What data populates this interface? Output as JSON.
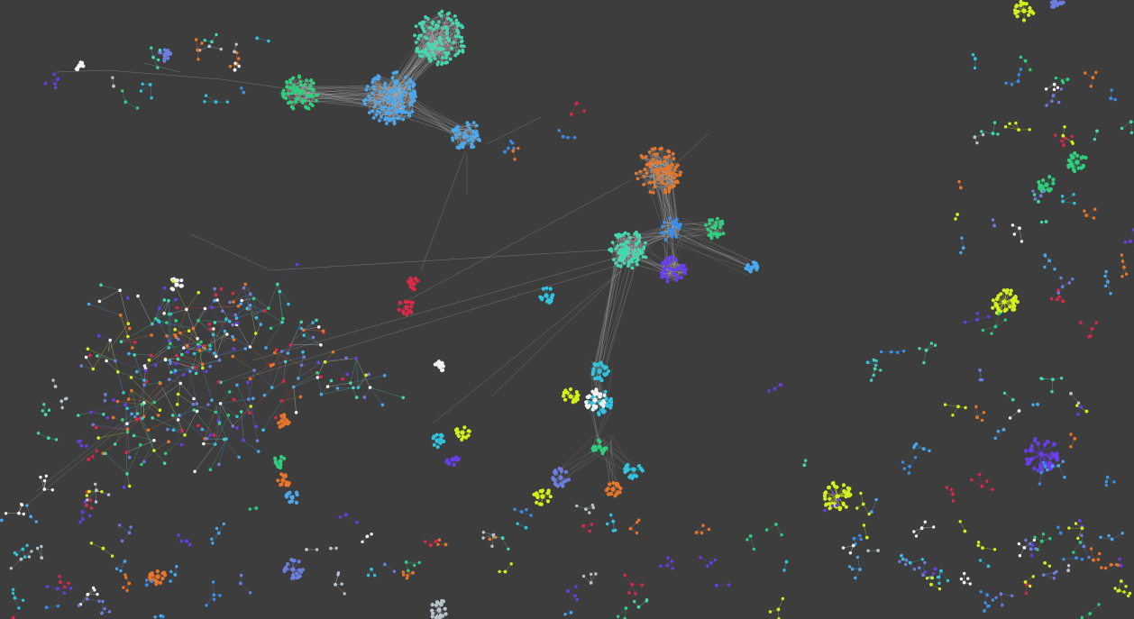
{
  "view": {
    "background": "#3d3d3d",
    "edge_color": "#c8c8c8",
    "title": ""
  },
  "palette": {
    "teal": "#44d8b0",
    "blue": "#3b8fe8",
    "sky": "#4aa8ee",
    "green": "#2fd07c",
    "orange": "#e8762a",
    "purple": "#6a3ef0",
    "periwinkle": "#6c7fe0",
    "cyan": "#30c4e0",
    "yellow": "#d4f01c",
    "red": "#e02848",
    "white": "#f2f2f2",
    "gray": "#b8c4cc"
  },
  "clusters": [
    {
      "id": "c-teal-top",
      "color": "teal",
      "size": 120,
      "density": "dense"
    },
    {
      "id": "c-blue-center",
      "color": "sky",
      "size": 130,
      "density": "dense"
    },
    {
      "id": "c-green-left",
      "color": "green",
      "size": 70,
      "density": "dense"
    },
    {
      "id": "c-blue-small",
      "color": "sky",
      "size": 50,
      "density": "dense"
    },
    {
      "id": "c-orange",
      "color": "orange",
      "size": 90,
      "density": "dense"
    },
    {
      "id": "c-teal-mid",
      "color": "teal",
      "size": 90,
      "density": "dense"
    },
    {
      "id": "c-blue-mid",
      "color": "blue",
      "size": 30,
      "density": "dense"
    },
    {
      "id": "c-green-mid",
      "color": "green",
      "size": 30,
      "density": "dense"
    },
    {
      "id": "c-purple-mid",
      "color": "purple",
      "size": 45,
      "density": "dense"
    },
    {
      "id": "c-lightblue-star",
      "color": "sky",
      "size": 14,
      "density": "star"
    },
    {
      "id": "c-cyan-lower",
      "color": "cyan",
      "size": 22,
      "density": "star"
    },
    {
      "id": "c-cyan-lower2",
      "color": "cyan",
      "size": 30,
      "density": "star"
    },
    {
      "id": "c-white-lower",
      "color": "white",
      "size": 24,
      "density": "star"
    },
    {
      "id": "c-yellow-lower",
      "color": "yellow",
      "size": 18,
      "density": "star"
    },
    {
      "id": "c-green-lower",
      "color": "green",
      "size": 14,
      "density": "star"
    },
    {
      "id": "c-periwinkle-lower",
      "color": "periwinkle",
      "size": 20,
      "density": "star"
    },
    {
      "id": "c-orange-lower",
      "color": "orange",
      "size": 16,
      "density": "star"
    },
    {
      "id": "c-cyan-lower3",
      "color": "cyan",
      "size": 18,
      "density": "star"
    },
    {
      "id": "c-yellow-lower2",
      "color": "yellow",
      "size": 16,
      "density": "star"
    },
    {
      "id": "c-red-left",
      "color": "red",
      "size": 14,
      "density": "star"
    },
    {
      "id": "c-red-left2",
      "color": "red",
      "size": 12,
      "density": "star"
    },
    {
      "id": "c-cyan-left",
      "color": "cyan",
      "size": 14,
      "density": "star"
    },
    {
      "id": "c-white-left",
      "color": "white",
      "size": 10,
      "density": "star"
    },
    {
      "id": "c-cyan-lower4",
      "color": "cyan",
      "size": 12,
      "density": "star"
    },
    {
      "id": "c-yellow-lower3",
      "color": "yellow",
      "size": 12,
      "density": "star"
    },
    {
      "id": "c-purple-lower",
      "color": "purple",
      "size": 10,
      "density": "star"
    },
    {
      "id": "c-white-lower2",
      "color": "white",
      "size": 10,
      "density": "star"
    },
    {
      "id": "c-orange-left",
      "color": "orange",
      "size": 12,
      "density": "star"
    },
    {
      "id": "c-orange-left2",
      "color": "orange",
      "size": 12,
      "density": "star"
    },
    {
      "id": "c-green-left2",
      "color": "green",
      "size": 10,
      "density": "star"
    },
    {
      "id": "c-sky-left",
      "color": "sky",
      "size": 10,
      "density": "star"
    },
    {
      "id": "c-yellow-right",
      "color": "yellow",
      "size": 40,
      "density": "star"
    },
    {
      "id": "c-purple-right",
      "color": "purple",
      "size": 50,
      "density": "star"
    },
    {
      "id": "c-yellow-bottom",
      "color": "yellow",
      "size": 40,
      "density": "star"
    },
    {
      "id": "c-green-right",
      "color": "green",
      "size": 22,
      "density": "star"
    },
    {
      "id": "c-green-right2",
      "color": "green",
      "size": 18,
      "density": "star"
    },
    {
      "id": "c-yellow-topright",
      "color": "yellow",
      "size": 18,
      "density": "star"
    },
    {
      "id": "c-periwinkle-topright",
      "color": "periwinkle",
      "size": 10,
      "density": "star"
    },
    {
      "id": "c-periwinkle-bottom",
      "color": "periwinkle",
      "size": 22,
      "density": "star"
    },
    {
      "id": "c-orange-bottom",
      "color": "orange",
      "size": 16,
      "density": "star"
    },
    {
      "id": "c-gray-bottom",
      "color": "gray",
      "size": 20,
      "density": "star"
    },
    {
      "id": "c-periwinkle-topleft",
      "color": "periwinkle",
      "size": 12,
      "density": "star"
    },
    {
      "id": "c-white-topleft",
      "color": "white",
      "size": 8,
      "density": "star"
    }
  ],
  "notes_visible_text": []
}
